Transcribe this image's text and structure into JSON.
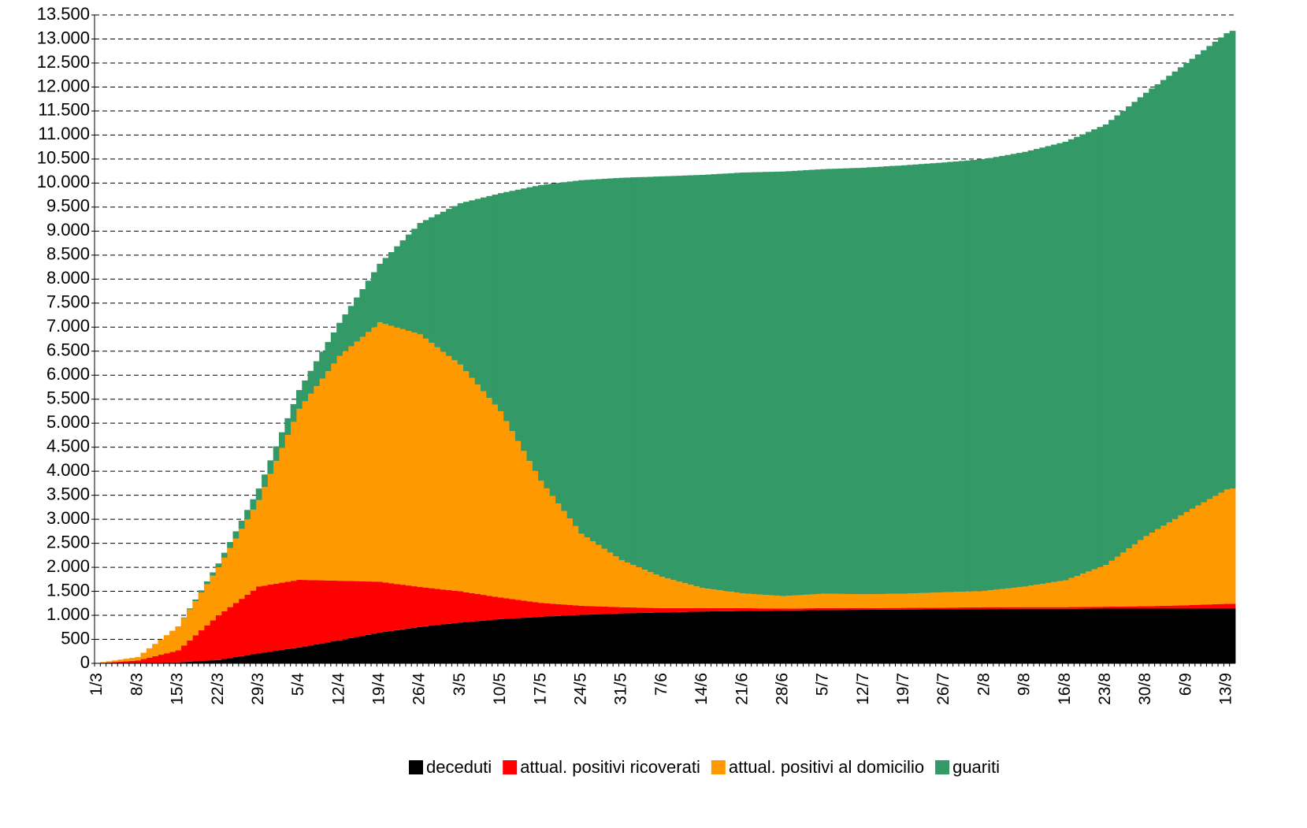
{
  "chart_data": {
    "type": "stacked-bar",
    "categories": [
      "1/3",
      null,
      null,
      null,
      null,
      null,
      null,
      "8/3",
      null,
      null,
      null,
      null,
      null,
      null,
      "15/3",
      null,
      null,
      null,
      null,
      null,
      null,
      "22/3",
      null,
      null,
      null,
      null,
      null,
      null,
      "29/3",
      null,
      null,
      null,
      null,
      null,
      null,
      "5/4",
      null,
      null,
      null,
      null,
      null,
      null,
      "12/4",
      null,
      null,
      null,
      null,
      null,
      null,
      "19/4",
      null,
      null,
      null,
      null,
      null,
      null,
      "26/4",
      null,
      null,
      null,
      null,
      null,
      null,
      "3/5",
      null,
      null,
      null,
      null,
      null,
      null,
      "10/5",
      null,
      null,
      null,
      null,
      null,
      null,
      "17/5",
      null,
      null,
      null,
      null,
      null,
      null,
      "24/5",
      null,
      null,
      null,
      null,
      null,
      null,
      "31/5",
      null,
      null,
      null,
      null,
      null,
      null,
      "7/6",
      null,
      null,
      null,
      null,
      null,
      null,
      "14/6",
      null,
      null,
      null,
      null,
      null,
      null,
      "21/6",
      null,
      null,
      null,
      null,
      null,
      null,
      "28/6",
      null,
      null,
      null,
      null,
      null,
      null,
      "5/7",
      null,
      null,
      null,
      null,
      null,
      null,
      "12/7",
      null,
      null,
      null,
      null,
      null,
      null,
      "19/7",
      null,
      null,
      null,
      null,
      null,
      null,
      "26/7",
      null,
      null,
      null,
      null,
      null,
      null,
      "2/8",
      null,
      null,
      null,
      null,
      null,
      null,
      "9/8",
      null,
      null,
      null,
      null,
      null,
      null,
      "16/8",
      null,
      null,
      null,
      null,
      null,
      null,
      "23/8",
      null,
      null,
      null,
      null,
      null,
      null,
      "30/8",
      null,
      null,
      null,
      null,
      null,
      null,
      "6/9",
      null,
      null,
      null,
      null,
      null,
      null,
      "13/9",
      null
    ],
    "series": [
      {
        "name": "deceduti",
        "color": "#000000",
        "values": [
          0,
          1,
          1,
          2,
          3,
          4,
          4,
          5,
          7,
          9,
          11,
          14,
          16,
          18,
          20,
          27,
          34,
          41,
          49,
          56,
          63,
          70,
          90,
          110,
          130,
          150,
          170,
          190,
          210,
          227,
          244,
          261,
          279,
          296,
          313,
          330,
          351,
          373,
          394,
          416,
          437,
          459,
          480,
          503,
          526,
          549,
          571,
          594,
          617,
          640,
          657,
          674,
          691,
          709,
          726,
          743,
          760,
          773,
          786,
          799,
          811,
          824,
          837,
          850,
          860,
          870,
          880,
          890,
          900,
          910,
          920,
          927,
          934,
          941,
          949,
          956,
          963,
          970,
          976,
          981,
          987,
          993,
          999,
          1004,
          1010,
          1014,
          1019,
          1023,
          1027,
          1031,
          1036,
          1040,
          1043,
          1046,
          1049,
          1051,
          1054,
          1057,
          1060,
          1063,
          1066,
          1069,
          1071,
          1074,
          1077,
          1080,
          1081,
          1083,
          1084,
          1086,
          1087,
          1089,
          1090,
          1091,
          1093,
          1094,
          1096,
          1097,
          1099,
          1100,
          1101,
          1103,
          1104,
          1106,
          1107,
          1109,
          1110,
          1111,
          1111,
          1112,
          1113,
          1114,
          1114,
          1115,
          1116,
          1116,
          1117,
          1118,
          1119,
          1119,
          1120,
          1121,
          1121,
          1122,
          1123,
          1124,
          1124,
          1125,
          1126,
          1126,
          1127,
          1128,
          1129,
          1129,
          1130,
          1131,
          1131,
          1132,
          1133,
          1134,
          1134,
          1135,
          1135,
          1135,
          1135,
          1135,
          1135,
          1135,
          1135,
          1136,
          1136,
          1137,
          1138,
          1139,
          1139,
          1140,
          1140,
          1140,
          1140,
          1140,
          1140,
          1140,
          1140,
          1140,
          1140,
          1140,
          1140,
          1140,
          1140,
          1140,
          1140,
          1140,
          1140,
          1140,
          1140,
          1140,
          1140,
          1140
        ]
      },
      {
        "name": "attual. positivi ricoverati",
        "color": "#ff0000",
        "values": [
          5,
          12,
          19,
          26,
          34,
          41,
          48,
          55,
          83,
          111,
          139,
          166,
          194,
          222,
          250,
          347,
          444,
          541,
          639,
          736,
          833,
          930,
          996,
          1061,
          1127,
          1193,
          1259,
          1324,
          1390,
          1393,
          1396,
          1399,
          1401,
          1404,
          1407,
          1410,
          1386,
          1361,
          1337,
          1313,
          1289,
          1264,
          1240,
          1214,
          1189,
          1163,
          1137,
          1111,
          1086,
          1060,
          1027,
          994,
          961,
          929,
          896,
          863,
          830,
          804,
          779,
          753,
          727,
          701,
          676,
          650,
          621,
          593,
          564,
          536,
          507,
          479,
          450,
          427,
          404,
          381,
          359,
          336,
          313,
          290,
          276,
          261,
          247,
          233,
          219,
          204,
          190,
          181,
          173,
          164,
          156,
          147,
          139,
          130,
          124,
          119,
          113,
          107,
          101,
          96,
          90,
          87,
          84,
          81,
          79,
          76,
          73,
          70,
          69,
          67,
          66,
          64,
          63,
          61,
          60,
          57,
          54,
          51,
          49,
          46,
          43,
          40,
          40,
          40,
          40,
          40,
          40,
          40,
          40,
          39,
          39,
          38,
          37,
          36,
          36,
          35,
          35,
          35,
          35,
          35,
          35,
          35,
          35,
          35,
          35,
          35,
          35,
          35,
          35,
          35,
          36,
          36,
          37,
          38,
          39,
          39,
          40,
          39,
          39,
          38,
          37,
          36,
          36,
          35,
          35,
          35,
          35,
          35,
          35,
          35,
          35,
          36,
          36,
          37,
          38,
          39,
          39,
          40,
          41,
          43,
          44,
          46,
          47,
          49,
          50,
          53,
          56,
          59,
          61,
          64,
          67,
          70,
          74,
          79,
          83,
          87,
          91,
          96,
          100,
          100
        ]
      },
      {
        "name": "attual. positivi al domicilio",
        "color": "#ff9900",
        "values": [
          5,
          14,
          24,
          33,
          42,
          51,
          61,
          70,
          131,
          193,
          254,
          316,
          377,
          439,
          500,
          571,
          643,
          714,
          786,
          857,
          929,
          1000,
          1114,
          1229,
          1343,
          1457,
          1571,
          1686,
          1800,
          2051,
          2303,
          2554,
          2806,
          3057,
          3309,
          3560,
          3720,
          3880,
          4040,
          4200,
          4360,
          4520,
          4680,
          4783,
          4886,
          4989,
          5091,
          5194,
          5297,
          5400,
          5380,
          5360,
          5340,
          5320,
          5300,
          5280,
          5260,
          5183,
          5106,
          5029,
          4951,
          4874,
          4797,
          4720,
          4600,
          4480,
          4360,
          4240,
          4120,
          4000,
          3880,
          3689,
          3497,
          3306,
          3114,
          2923,
          2731,
          2540,
          2391,
          2243,
          2094,
          1946,
          1797,
          1649,
          1500,
          1426,
          1351,
          1277,
          1203,
          1129,
          1054,
          980,
          933,
          886,
          839,
          791,
          744,
          697,
          650,
          617,
          584,
          551,
          519,
          486,
          453,
          420,
          404,
          389,
          373,
          357,
          341,
          326,
          310,
          303,
          296,
          289,
          281,
          274,
          267,
          260,
          266,
          271,
          277,
          283,
          289,
          294,
          300,
          299,
          297,
          296,
          294,
          293,
          291,
          290,
          291,
          291,
          292,
          293,
          294,
          294,
          295,
          299,
          302,
          306,
          309,
          313,
          316,
          320,
          323,
          326,
          329,
          331,
          334,
          337,
          340,
          353,
          366,
          379,
          391,
          404,
          417,
          430,
          449,
          467,
          486,
          504,
          523,
          541,
          560,
          604,
          649,
          693,
          737,
          781,
          826,
          870,
          954,
          1039,
          1123,
          1207,
          1291,
          1376,
          1460,
          1529,
          1597,
          1666,
          1734,
          1803,
          1871,
          1940,
          2003,
          2066,
          2129,
          2191,
          2254,
          2317,
          2380,
          2400
        ]
      },
      {
        "name": "guariti",
        "color": "#339966",
        "values": [
          0,
          0,
          0,
          0,
          0,
          0,
          0,
          0,
          0,
          0,
          0,
          0,
          0,
          0,
          0,
          11,
          23,
          34,
          46,
          57,
          69,
          80,
          103,
          126,
          149,
          171,
          194,
          217,
          240,
          261,
          283,
          304,
          326,
          347,
          369,
          390,
          433,
          476,
          519,
          561,
          604,
          647,
          690,
          766,
          841,
          917,
          993,
          1069,
          1144,
          1220,
          1377,
          1534,
          1691,
          1849,
          2006,
          2163,
          2320,
          2469,
          2617,
          2766,
          2914,
          3063,
          3211,
          3360,
          3529,
          3697,
          3866,
          4034,
          4203,
          4371,
          4540,
          4771,
          5003,
          5234,
          5466,
          5697,
          5929,
          6160,
          6331,
          6503,
          6674,
          6846,
          7017,
          7189,
          7360,
          7446,
          7531,
          7617,
          7703,
          7789,
          7874,
          7960,
          8014,
          8069,
          8123,
          8177,
          8231,
          8286,
          8340,
          8377,
          8414,
          8451,
          8489,
          8526,
          8563,
          8600,
          8623,
          8646,
          8669,
          8691,
          8714,
          8737,
          8760,
          8771,
          8783,
          8794,
          8806,
          8817,
          8829,
          8840,
          8840,
          8840,
          8840,
          8840,
          8840,
          8840,
          8840,
          8846,
          8851,
          8857,
          8863,
          8869,
          8874,
          8880,
          8886,
          8891,
          8897,
          8903,
          8909,
          8914,
          8920,
          8924,
          8929,
          8933,
          8937,
          8941,
          8946,
          8950,
          8956,
          8961,
          8967,
          8973,
          8979,
          8984,
          8990,
          8999,
          9007,
          9016,
          9024,
          9033,
          9041,
          9050,
          9061,
          9073,
          9084,
          9096,
          9107,
          9119,
          9130,
          9136,
          9141,
          9147,
          9153,
          9159,
          9164,
          9170,
          9179,
          9187,
          9196,
          9204,
          9213,
          9221,
          9230,
          9247,
          9264,
          9281,
          9299,
          9316,
          9333,
          9350,
          9371,
          9393,
          9414,
          9436,
          9457,
          9479,
          9500,
          9530
        ]
      }
    ],
    "ylim": [
      0,
      13500
    ],
    "yticks": [
      0,
      500,
      {
        "value": 1000,
        "label": "1.000"
      },
      {
        "value": 1500,
        "label": "1.500"
      },
      {
        "value": 2000,
        "label": "2.000"
      },
      {
        "value": 2500,
        "label": "2.500"
      },
      {
        "value": 3000,
        "label": "3.000"
      },
      {
        "value": 3500,
        "label": "3.500"
      },
      {
        "value": 4000,
        "label": "4.000"
      },
      {
        "value": 4500,
        "label": "4.500"
      },
      {
        "value": 5000,
        "label": "5.000"
      },
      {
        "value": 5500,
        "label": "5.500"
      },
      {
        "value": 6000,
        "label": "6.000"
      },
      {
        "value": 6500,
        "label": "6.500"
      },
      {
        "value": 7000,
        "label": "7.000"
      },
      {
        "value": 7500,
        "label": "7.500"
      },
      {
        "value": 8000,
        "label": "8.000"
      },
      {
        "value": 8500,
        "label": "8.500"
      },
      {
        "value": 9000,
        "label": "9.000"
      },
      {
        "value": 9500,
        "label": "9.500"
      },
      {
        "value": 10000,
        "label": "10.000"
      },
      {
        "value": 10500,
        "label": "10.500"
      },
      {
        "value": 11000,
        "label": "11.000"
      },
      {
        "value": 11500,
        "label": "11.500"
      },
      {
        "value": 12000,
        "label": "12.000"
      },
      {
        "value": 12500,
        "label": "12.500"
      },
      {
        "value": 13000,
        "label": "13.000"
      },
      {
        "value": 13500,
        "label": "13.500"
      }
    ],
    "grid": true,
    "legend": "bottom"
  }
}
